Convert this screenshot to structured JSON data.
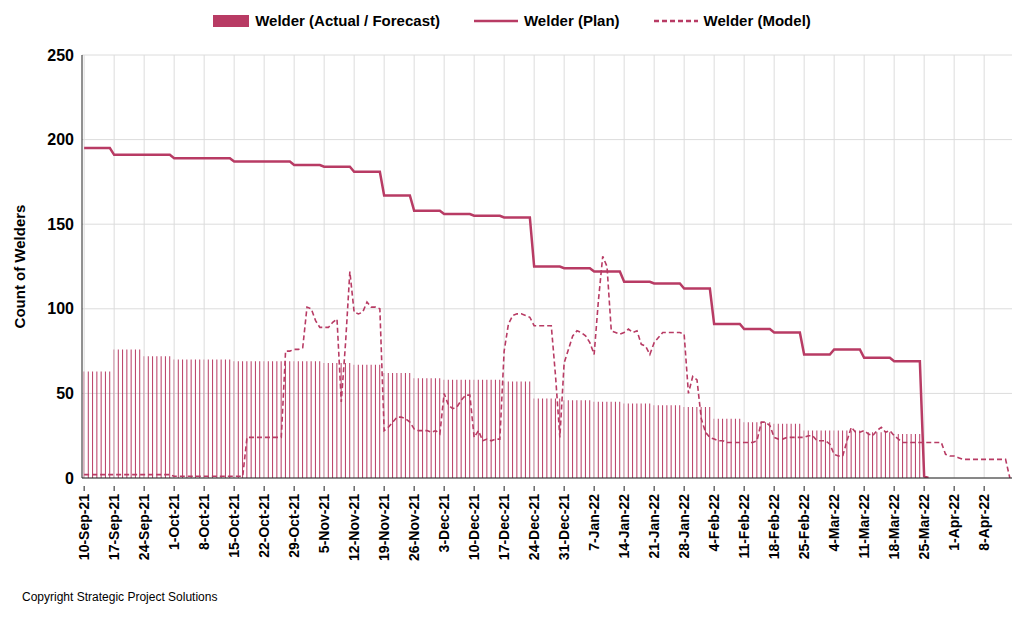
{
  "chart_data": {
    "type": "bar",
    "y_label": "Count of Welders",
    "annotations": [
      "Copyright Strategic Project Solutions"
    ],
    "legend": "top",
    "grid": true,
    "ylim": [
      0,
      250
    ],
    "yticks": [
      0,
      50,
      100,
      150,
      200,
      250
    ],
    "categories": [
      "10-Sep-21",
      null,
      null,
      null,
      null,
      null,
      null,
      "17-Sep-21",
      null,
      null,
      null,
      null,
      null,
      null,
      "24-Sep-21",
      null,
      null,
      null,
      null,
      null,
      null,
      "1-Oct-21",
      null,
      null,
      null,
      null,
      null,
      null,
      "8-Oct-21",
      null,
      null,
      null,
      null,
      null,
      null,
      "15-Oct-21",
      null,
      null,
      null,
      null,
      null,
      null,
      "22-Oct-21",
      null,
      null,
      null,
      null,
      null,
      null,
      "29-Oct-21",
      null,
      null,
      null,
      null,
      null,
      null,
      "5-Nov-21",
      null,
      null,
      null,
      null,
      null,
      null,
      "12-Nov-21",
      null,
      null,
      null,
      null,
      null,
      null,
      "19-Nov-21",
      null,
      null,
      null,
      null,
      null,
      null,
      "26-Nov-21",
      null,
      null,
      null,
      null,
      null,
      null,
      "3-Dec-21",
      null,
      null,
      null,
      null,
      null,
      null,
      "10-Dec-21",
      null,
      null,
      null,
      null,
      null,
      null,
      "17-Dec-21",
      null,
      null,
      null,
      null,
      null,
      null,
      "24-Dec-21",
      null,
      null,
      null,
      null,
      null,
      null,
      "31-Dec-21",
      null,
      null,
      null,
      null,
      null,
      null,
      "7-Jan-22",
      null,
      null,
      null,
      null,
      null,
      null,
      "14-Jan-22",
      null,
      null,
      null,
      null,
      null,
      null,
      "21-Jan-22",
      null,
      null,
      null,
      null,
      null,
      null,
      "28-Jan-22",
      null,
      null,
      null,
      null,
      null,
      null,
      "4-Feb-22",
      null,
      null,
      null,
      null,
      null,
      null,
      "11-Feb-22",
      null,
      null,
      null,
      null,
      null,
      null,
      "18-Feb-22",
      null,
      null,
      null,
      null,
      null,
      null,
      "25-Feb-22",
      null,
      null,
      null,
      null,
      null,
      null,
      "4-Mar-22",
      null,
      null,
      null,
      null,
      null,
      null,
      "11-Mar-22",
      null,
      null,
      null,
      null,
      null,
      null,
      "18-Mar-22",
      null,
      null,
      null,
      null,
      null,
      null,
      "25-Mar-22",
      null,
      null,
      null,
      null,
      null,
      null,
      "1-Apr-22",
      null,
      null,
      null,
      null,
      null,
      null,
      "8-Apr-22",
      null,
      null,
      null,
      null,
      null,
      null
    ],
    "series": [
      {
        "name": "Welder (Actual / Forecast)",
        "type": "bar",
        "color": "#b83b64",
        "values": [
          63,
          63,
          63,
          63,
          63,
          63,
          63,
          76,
          76,
          76,
          76,
          76,
          76,
          76,
          72,
          72,
          72,
          72,
          72,
          72,
          72,
          70,
          70,
          70,
          70,
          70,
          70,
          70,
          70,
          70,
          70,
          70,
          70,
          70,
          70,
          69,
          69,
          69,
          69,
          69,
          69,
          69,
          69,
          69,
          69,
          69,
          69,
          69,
          69,
          69,
          69,
          69,
          69,
          69,
          69,
          69,
          68,
          68,
          68,
          68,
          68,
          68,
          68,
          67,
          67,
          67,
          67,
          67,
          67,
          67,
          62,
          62,
          62,
          62,
          62,
          62,
          62,
          59,
          59,
          59,
          59,
          59,
          59,
          59,
          58,
          58,
          58,
          58,
          58,
          58,
          58,
          58,
          58,
          58,
          58,
          58,
          58,
          58,
          57,
          57,
          57,
          57,
          57,
          57,
          57,
          47,
          47,
          47,
          47,
          47,
          47,
          47,
          46,
          46,
          46,
          46,
          46,
          46,
          46,
          45,
          45,
          45,
          45,
          45,
          45,
          45,
          44,
          44,
          44,
          44,
          44,
          44,
          44,
          43,
          43,
          43,
          43,
          43,
          43,
          43,
          42,
          42,
          42,
          42,
          42,
          42,
          42,
          35,
          35,
          35,
          35,
          35,
          35,
          35,
          33,
          33,
          33,
          33,
          33,
          33,
          33,
          32,
          32,
          32,
          32,
          32,
          32,
          32,
          28,
          28,
          28,
          28,
          28,
          28,
          28,
          28,
          28,
          28,
          28,
          28,
          28,
          28,
          27,
          27,
          27,
          27,
          27,
          27,
          27,
          26,
          26,
          26,
          26,
          26,
          26,
          26,
          null,
          null,
          null,
          null,
          null,
          null,
          null,
          null,
          null,
          null,
          null,
          null,
          null,
          null,
          null,
          null,
          null,
          null,
          null,
          null,
          null
        ]
      },
      {
        "name": "Welder (Plan)",
        "type": "line",
        "line_style": "solid",
        "color": "#b83b64",
        "values": [
          195,
          195,
          195,
          195,
          195,
          195,
          195,
          191,
          191,
          191,
          191,
          191,
          191,
          191,
          191,
          191,
          191,
          191,
          191,
          191,
          191,
          189,
          189,
          189,
          189,
          189,
          189,
          189,
          189,
          189,
          189,
          189,
          189,
          189,
          189,
          187,
          187,
          187,
          187,
          187,
          187,
          187,
          187,
          187,
          187,
          187,
          187,
          187,
          187,
          185,
          185,
          185,
          185,
          185,
          185,
          185,
          184,
          184,
          184,
          184,
          184,
          184,
          184,
          181,
          181,
          181,
          181,
          181,
          181,
          181,
          167,
          167,
          167,
          167,
          167,
          167,
          167,
          158,
          158,
          158,
          158,
          158,
          158,
          158,
          156,
          156,
          156,
          156,
          156,
          156,
          156,
          155,
          155,
          155,
          155,
          155,
          155,
          155,
          154,
          154,
          154,
          154,
          154,
          154,
          154,
          125,
          125,
          125,
          125,
          125,
          125,
          125,
          124,
          124,
          124,
          124,
          124,
          124,
          124,
          122,
          122,
          122,
          122,
          122,
          122,
          122,
          116,
          116,
          116,
          116,
          116,
          116,
          116,
          115,
          115,
          115,
          115,
          115,
          115,
          115,
          112,
          112,
          112,
          112,
          112,
          112,
          112,
          91,
          91,
          91,
          91,
          91,
          91,
          91,
          88,
          88,
          88,
          88,
          88,
          88,
          88,
          86,
          86,
          86,
          86,
          86,
          86,
          86,
          73,
          73,
          73,
          73,
          73,
          73,
          73,
          76,
          76,
          76,
          76,
          76,
          76,
          76,
          71,
          71,
          71,
          71,
          71,
          71,
          71,
          69,
          69,
          69,
          69,
          69,
          69,
          69,
          1,
          0,
          null,
          null,
          null,
          null,
          null,
          null,
          null,
          null,
          null,
          null,
          null,
          null,
          null,
          null,
          null,
          null,
          null,
          null,
          null
        ]
      },
      {
        "name": "Welder (Model)",
        "type": "line",
        "line_style": "dashed",
        "color": "#b83b64",
        "values": [
          2,
          2,
          2,
          2,
          2,
          2,
          2,
          2,
          2,
          2,
          2,
          2,
          2,
          2,
          2,
          2,
          2,
          2,
          2,
          2,
          2,
          1,
          1,
          1,
          1,
          1,
          1,
          1,
          1,
          1,
          1,
          1,
          1,
          1,
          1,
          1,
          1,
          1,
          24,
          24,
          24,
          24,
          24,
          24,
          24,
          24,
          24,
          75,
          75,
          76,
          76,
          77,
          101,
          100,
          93,
          89,
          89,
          89,
          92,
          94,
          45,
          80,
          122,
          98,
          97,
          98,
          104,
          101,
          101,
          100,
          28,
          30,
          33,
          36,
          36,
          35,
          33,
          29,
          28,
          28,
          28,
          27,
          28,
          26,
          50,
          43,
          41,
          42,
          46,
          49,
          49,
          24,
          28,
          22,
          23,
          22,
          23,
          23,
          75,
          91,
          96,
          97,
          97,
          96,
          95,
          90,
          90,
          90,
          90,
          90,
          60,
          24,
          68,
          76,
          84,
          87,
          86,
          84,
          80,
          73,
          105,
          131,
          125,
          87,
          86,
          85,
          86,
          88,
          86,
          87,
          79,
          78,
          73,
          80,
          83,
          86,
          86,
          86,
          86,
          86,
          85,
          50,
          60,
          58,
          35,
          27,
          24,
          23,
          22,
          22,
          21,
          21,
          21,
          21,
          21,
          21,
          21,
          22,
          33,
          33,
          31,
          24,
          23,
          23,
          24,
          24,
          24,
          24,
          24,
          25,
          25,
          22,
          22,
          22,
          20,
          14,
          13,
          13,
          22,
          30,
          27,
          27,
          28,
          26,
          25,
          28,
          30,
          27,
          28,
          25,
          23,
          21,
          21,
          21,
          21,
          21,
          21,
          21,
          21,
          21,
          21,
          14,
          13,
          13,
          12,
          11,
          11,
          11,
          11,
          11,
          11,
          11,
          11,
          11,
          11,
          11,
          0
        ]
      }
    ]
  }
}
